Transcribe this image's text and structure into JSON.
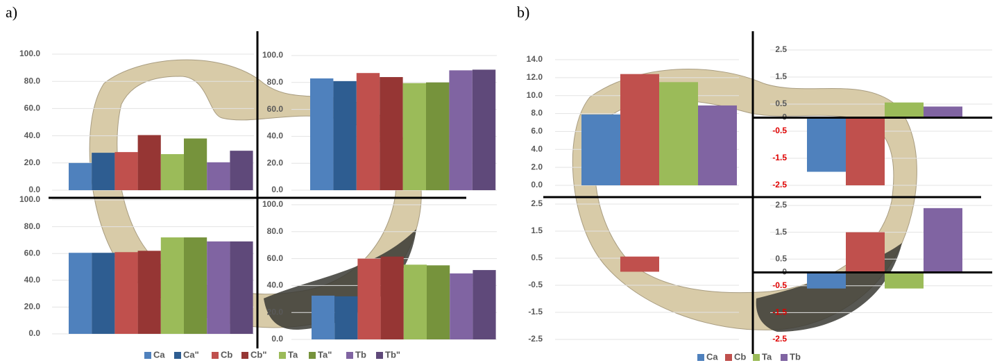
{
  "chart_data": [
    {
      "type": "bar",
      "panel_label": "a)",
      "series": [
        {
          "name": "Ca",
          "color": "#4f81bd"
        },
        {
          "name": "Ca\"",
          "color": "#2e5d91"
        },
        {
          "name": "Cb",
          "color": "#c0504d"
        },
        {
          "name": "Cb\"",
          "color": "#963634"
        },
        {
          "name": "Ta",
          "color": "#9bbb59"
        },
        {
          "name": "Ta\"",
          "color": "#76933c"
        },
        {
          "name": "Tb",
          "color": "#8064a2"
        },
        {
          "name": "Tb\"",
          "color": "#5f497a"
        }
      ],
      "subplots": [
        {
          "ylim": [
            0,
            100
          ],
          "yticks": [
            {
              "value": 0,
              "label": "0.0"
            },
            {
              "value": 20,
              "label": "20.0"
            },
            {
              "value": 40,
              "label": "40.0"
            },
            {
              "value": 60,
              "label": "60.0"
            },
            {
              "value": 80,
              "label": "80.0"
            },
            {
              "value": 100,
              "label": "100.0"
            }
          ],
          "values": [
            20,
            27.5,
            28,
            40.5,
            26.5,
            38,
            20.5,
            29
          ]
        },
        {
          "ylim": [
            0,
            100
          ],
          "yticks": [
            {
              "value": 0,
              "label": "0.0"
            },
            {
              "value": 20,
              "label": "20.0"
            },
            {
              "value": 40,
              "label": "40.0"
            },
            {
              "value": 60,
              "label": "60.0"
            },
            {
              "value": 80,
              "label": "80.0"
            },
            {
              "value": 100,
              "label": "100.0"
            }
          ],
          "values": [
            83,
            81,
            87,
            84,
            79.5,
            80,
            89,
            89.5
          ]
        },
        {
          "ylim": [
            0,
            100
          ],
          "yticks": [
            {
              "value": 0,
              "label": "0.0"
            },
            {
              "value": 20,
              "label": "20.0"
            },
            {
              "value": 40,
              "label": "40.0"
            },
            {
              "value": 60,
              "label": "60.0"
            },
            {
              "value": 80,
              "label": "80.0"
            },
            {
              "value": 100,
              "label": "100.0"
            }
          ],
          "values": [
            60.5,
            60.5,
            61,
            62,
            72,
            72,
            69,
            69
          ]
        },
        {
          "ylim": [
            0,
            100
          ],
          "yticks": [
            {
              "value": 0,
              "label": "0.0"
            },
            {
              "value": 20,
              "label": "20.0"
            },
            {
              "value": 40,
              "label": "40.0"
            },
            {
              "value": 60,
              "label": "60.0"
            },
            {
              "value": 80,
              "label": "80.0"
            },
            {
              "value": 100,
              "label": "100.0"
            }
          ],
          "values": [
            32.5,
            32,
            60,
            61.5,
            55.5,
            55,
            49,
            51.5
          ]
        }
      ]
    },
    {
      "type": "bar",
      "panel_label": "b)",
      "series": [
        {
          "name": "Ca",
          "color": "#4f81bd"
        },
        {
          "name": "Cb",
          "color": "#c0504d"
        },
        {
          "name": "Ta",
          "color": "#9bbb59"
        },
        {
          "name": "Tb",
          "color": "#8064a2"
        }
      ],
      "subplots": [
        {
          "ylim": [
            0,
            14
          ],
          "yticks": [
            {
              "value": 0,
              "label": "0.0"
            },
            {
              "value": 2,
              "label": "2.0"
            },
            {
              "value": 4,
              "label": "4.0"
            },
            {
              "value": 6,
              "label": "6.0"
            },
            {
              "value": 8,
              "label": "8.0"
            },
            {
              "value": 10,
              "label": "10.0"
            },
            {
              "value": 12,
              "label": "12.0"
            },
            {
              "value": 14,
              "label": "14.0"
            }
          ],
          "values": [
            7.9,
            12.4,
            11.5,
            8.9
          ]
        },
        {
          "ylim": [
            -2.5,
            2.5
          ],
          "yticks": [
            -2.5,
            -1.5,
            -0.5,
            0,
            0.5,
            1.5,
            2.5
          ],
          "zero_line": true,
          "negative_tick_color": "#e00000",
          "values": [
            -2.0,
            -2.5,
            0.56,
            0.41
          ]
        },
        {
          "ylim": [
            -2.5,
            2.5
          ],
          "yticks": [
            -2.5,
            -1.5,
            -0.5,
            0.5,
            1.5,
            2.5
          ],
          "values": [
            0,
            0.56,
            0,
            0
          ]
        },
        {
          "ylim": [
            -2.5,
            2.5
          ],
          "yticks": [
            -2.5,
            -1.5,
            -0.5,
            0,
            0.5,
            1.5,
            2.5
          ],
          "zero_line": true,
          "negative_tick_color": "#e00000",
          "values": [
            -0.6,
            1.5,
            -0.6,
            2.4
          ]
        }
      ]
    }
  ]
}
